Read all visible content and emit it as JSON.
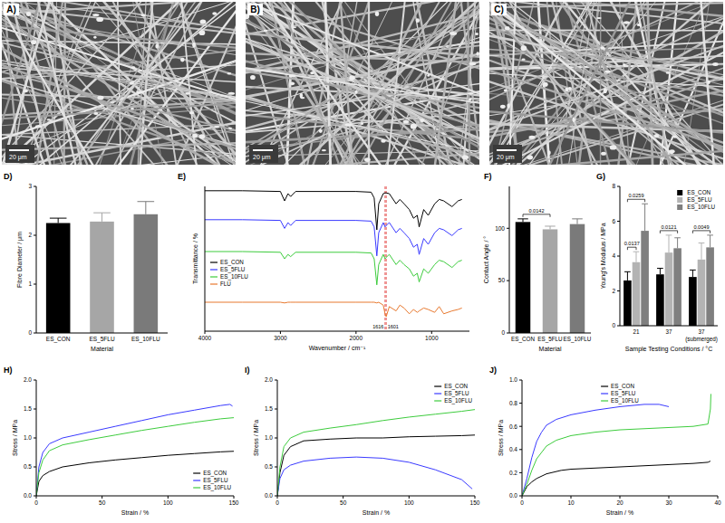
{
  "images": [
    {
      "label": "A)",
      "scale_bar": "20 μm"
    },
    {
      "label": "B)",
      "scale_bar": "20 μm"
    },
    {
      "label": "C)",
      "scale_bar": "20 μm"
    }
  ],
  "chart_data": [
    {
      "label": "D)",
      "type": "bar",
      "x_label": "Material",
      "y_label": "Fibre Diameter / μm",
      "categories": [
        "ES_CON",
        "ES_5FLU",
        "ES_10FLU"
      ],
      "values": [
        2.25,
        2.28,
        2.43
      ],
      "errors": [
        0.1,
        0.18,
        0.26
      ],
      "colors": [
        "#000000",
        "#a6a6a6",
        "#7a7a7a"
      ],
      "ylim": [
        0,
        3
      ],
      "yticks": [
        0,
        1,
        2,
        3
      ]
    },
    {
      "label": "E)",
      "type": "line",
      "x_label": "Wavenumber / cm⁻¹",
      "y_label": "Transmittance / %",
      "tick_labels": "x",
      "legend": "left",
      "xlim": [
        4000,
        500
      ],
      "xticks": [
        4000,
        3000,
        2000,
        1000
      ],
      "ylim": [
        0,
        100
      ],
      "x": [
        4000,
        3500,
        3000,
        2945,
        2900,
        2865,
        2800,
        2000,
        1800,
        1760,
        1725,
        1700,
        1640,
        1616,
        1601,
        1560,
        1470,
        1420,
        1365,
        1295,
        1240,
        1190,
        1165,
        1105,
        1045,
        960,
        900,
        840,
        730,
        650,
        600
      ],
      "series": [
        {
          "name": "ES_CON",
          "color": "#000000",
          "values": [
            97,
            97,
            96.5,
            90,
            95,
            93,
            96.5,
            96.5,
            96,
            92,
            70,
            88,
            95,
            95.5,
            95.5,
            95,
            88,
            91,
            88,
            84,
            78,
            80,
            72,
            84,
            80,
            88,
            91,
            90,
            86,
            90,
            91
          ]
        },
        {
          "name": "ES_5FLU",
          "color": "#3a3aff",
          "values": [
            77,
            77,
            76.5,
            71,
            75,
            73,
            76.5,
            76.5,
            76,
            72,
            52,
            68,
            75,
            72,
            73,
            75,
            68,
            71,
            68,
            64,
            58,
            60,
            53,
            64,
            60,
            68,
            71,
            70,
            66,
            70,
            71
          ]
        },
        {
          "name": "ES_10FLU",
          "color": "#3dcc3d",
          "values": [
            55,
            55,
            54.5,
            50,
            53,
            51.5,
            54.5,
            54.5,
            54,
            50,
            32,
            46,
            53,
            50,
            51,
            53,
            46,
            49,
            46,
            43,
            38,
            40,
            34,
            43,
            40,
            46,
            49,
            48,
            44,
            48,
            49
          ]
        },
        {
          "name": "FLU",
          "color": "#e8792f",
          "values": [
            20,
            20,
            20,
            19.5,
            20,
            20,
            20,
            20,
            20,
            20,
            19.5,
            20,
            18,
            12,
            10,
            17,
            14,
            18,
            16,
            12,
            15,
            13,
            14,
            16,
            15,
            13,
            17,
            12,
            14,
            15,
            16
          ]
        }
      ],
      "annotations": [
        {
          "text": "1616",
          "x": 1616,
          "color": "#e0302f",
          "line_style": "dashed"
        },
        {
          "text": "1601",
          "x": 1601,
          "color": "#e0302f",
          "line_style": "dashed"
        }
      ]
    },
    {
      "label": "F)",
      "type": "bar",
      "x_label": "Material",
      "y_label": "Contact Angle / °",
      "categories": [
        "ES_CON",
        "ES_5FLU",
        "ES_10FLU"
      ],
      "values": [
        106,
        99,
        104
      ],
      "errors": [
        3,
        3,
        5
      ],
      "colors": [
        "#000000",
        "#a6a6a6",
        "#7a7a7a"
      ],
      "ylim": [
        0,
        140
      ],
      "yticks": [
        0,
        50,
        100
      ],
      "annotations": [
        {
          "text": "0.0142",
          "from": 0,
          "to": 1
        }
      ]
    },
    {
      "label": "G)",
      "type": "bar",
      "x_label": "Sample Testing Conditions / °C",
      "y_label": "Young's Modulus / MPa",
      "legend": "top-right",
      "categories": [
        "21",
        "37",
        "37 (submerged)"
      ],
      "ylim": [
        0,
        8
      ],
      "yticks": [
        0,
        2,
        4,
        6,
        8
      ],
      "series": [
        {
          "name": "ES_CON",
          "color": "#000000",
          "values": [
            2.6,
            2.95,
            2.8
          ],
          "errors": [
            0.5,
            0.35,
            0.4
          ]
        },
        {
          "name": "ES_5FLU",
          "color": "#b3b3b3",
          "values": [
            3.65,
            4.2,
            3.8
          ],
          "errors": [
            0.6,
            1.0,
            0.95
          ]
        },
        {
          "name": "ES_10FLU",
          "color": "#7f7f7f",
          "values": [
            5.45,
            4.45,
            4.5
          ],
          "errors": [
            1.55,
            0.6,
            0.7
          ]
        }
      ],
      "annotations": [
        {
          "text": "0.0137",
          "category": 0,
          "from": 0,
          "to": 1
        },
        {
          "text": "0.0259",
          "category": 0,
          "from": 0,
          "to": 2
        },
        {
          "text": "0.0121",
          "category": 1,
          "from": 0,
          "to": 2
        },
        {
          "text": "0.0049",
          "category": 2,
          "from": 0,
          "to": 2
        }
      ]
    },
    {
      "label": "H)",
      "type": "line",
      "x_label": "Strain / %",
      "y_label": "Stress / MPa",
      "legend": "bottom-right",
      "xlim": [
        0,
        150
      ],
      "xticks": [
        0,
        50,
        100,
        150
      ],
      "ylim": [
        0,
        2
      ],
      "yticks": [
        {
          "value": 0,
          "label": "0.0"
        },
        0.5,
        {
          "value": 1,
          "label": "1.0"
        },
        1.5,
        {
          "value": 2,
          "label": "2.0"
        }
      ],
      "series": [
        {
          "name": "ES_CON",
          "color": "#000000",
          "x": [
            0,
            2,
            5,
            10,
            20,
            40,
            60,
            80,
            100,
            120,
            140,
            150
          ],
          "values": [
            0,
            0.25,
            0.35,
            0.42,
            0.5,
            0.57,
            0.62,
            0.66,
            0.7,
            0.73,
            0.76,
            0.77
          ]
        },
        {
          "name": "ES_5FLU",
          "color": "#3a3aff",
          "x": [
            0,
            2,
            5,
            10,
            20,
            40,
            60,
            80,
            100,
            120,
            140,
            147,
            149
          ],
          "values": [
            0,
            0.5,
            0.75,
            0.9,
            1.0,
            1.1,
            1.2,
            1.3,
            1.4,
            1.48,
            1.56,
            1.58,
            1.55
          ]
        },
        {
          "name": "ES_10FLU",
          "color": "#3dcc3d",
          "x": [
            0,
            2,
            5,
            10,
            20,
            40,
            60,
            80,
            100,
            120,
            140,
            150
          ],
          "values": [
            0,
            0.4,
            0.62,
            0.78,
            0.88,
            0.97,
            1.05,
            1.13,
            1.2,
            1.27,
            1.33,
            1.35
          ]
        }
      ]
    },
    {
      "label": "I)",
      "type": "line",
      "x_label": "Strain / %",
      "y_label": "Stress / MPa",
      "legend": "top-right",
      "xlim": [
        0,
        150
      ],
      "xticks": [
        0,
        50,
        100,
        150
      ],
      "ylim": [
        0,
        2
      ],
      "yticks": [
        {
          "value": 0,
          "label": "0.0"
        },
        0.5,
        {
          "value": 1,
          "label": "1.0"
        },
        1.5,
        {
          "value": 2,
          "label": "2.0"
        }
      ],
      "series": [
        {
          "name": "ES_CON",
          "color": "#000000",
          "x": [
            0,
            2,
            5,
            10,
            20,
            40,
            60,
            80,
            100,
            120,
            140,
            150
          ],
          "values": [
            0,
            0.4,
            0.7,
            0.85,
            0.95,
            0.98,
            1.0,
            1.0,
            1.02,
            1.03,
            1.04,
            1.05
          ]
        },
        {
          "name": "ES_5FLU",
          "color": "#3a3aff",
          "x": [
            0,
            2,
            5,
            10,
            20,
            40,
            60,
            80,
            100,
            120,
            140,
            148
          ],
          "values": [
            0,
            0.3,
            0.45,
            0.53,
            0.6,
            0.65,
            0.67,
            0.65,
            0.58,
            0.45,
            0.28,
            0.12
          ]
        },
        {
          "name": "ES_10FLU",
          "color": "#3dcc3d",
          "x": [
            0,
            2,
            5,
            10,
            20,
            40,
            60,
            80,
            100,
            120,
            140,
            150
          ],
          "values": [
            0,
            0.5,
            0.85,
            1.0,
            1.1,
            1.17,
            1.23,
            1.3,
            1.36,
            1.41,
            1.46,
            1.49
          ]
        }
      ]
    },
    {
      "label": "J)",
      "type": "line",
      "x_label": "Strain / %",
      "y_label": "Stress / MPa",
      "legend": "top",
      "xlim": [
        0,
        40
      ],
      "xticks": [
        0,
        10,
        20,
        30,
        40
      ],
      "ylim": [
        0,
        1
      ],
      "yticks": [
        {
          "value": 0,
          "label": "0.0"
        },
        0.2,
        0.4,
        0.6,
        0.8,
        {
          "value": 1,
          "label": "1.0"
        }
      ],
      "series": [
        {
          "name": "ES_CON",
          "color": "#000000",
          "x": [
            0,
            1,
            2,
            3,
            5,
            8,
            10,
            15,
            20,
            25,
            30,
            35,
            38,
            38.5
          ],
          "values": [
            0,
            0.08,
            0.12,
            0.15,
            0.19,
            0.22,
            0.23,
            0.24,
            0.25,
            0.26,
            0.27,
            0.28,
            0.29,
            0.3
          ]
        },
        {
          "name": "ES_5FLU",
          "color": "#3a3aff",
          "x": [
            0,
            1,
            2,
            3,
            4,
            5,
            7,
            10,
            15,
            20,
            25,
            28,
            30
          ],
          "values": [
            0,
            0.15,
            0.33,
            0.47,
            0.55,
            0.61,
            0.66,
            0.7,
            0.74,
            0.77,
            0.79,
            0.79,
            0.77
          ]
        },
        {
          "name": "ES_10FLU",
          "color": "#3dcc3d",
          "x": [
            0,
            1,
            2,
            3,
            5,
            7,
            10,
            15,
            20,
            25,
            30,
            35,
            38,
            38.5,
            38.6
          ],
          "values": [
            0,
            0.1,
            0.22,
            0.32,
            0.43,
            0.48,
            0.52,
            0.55,
            0.57,
            0.58,
            0.59,
            0.6,
            0.62,
            0.75,
            0.88
          ]
        }
      ]
    }
  ]
}
